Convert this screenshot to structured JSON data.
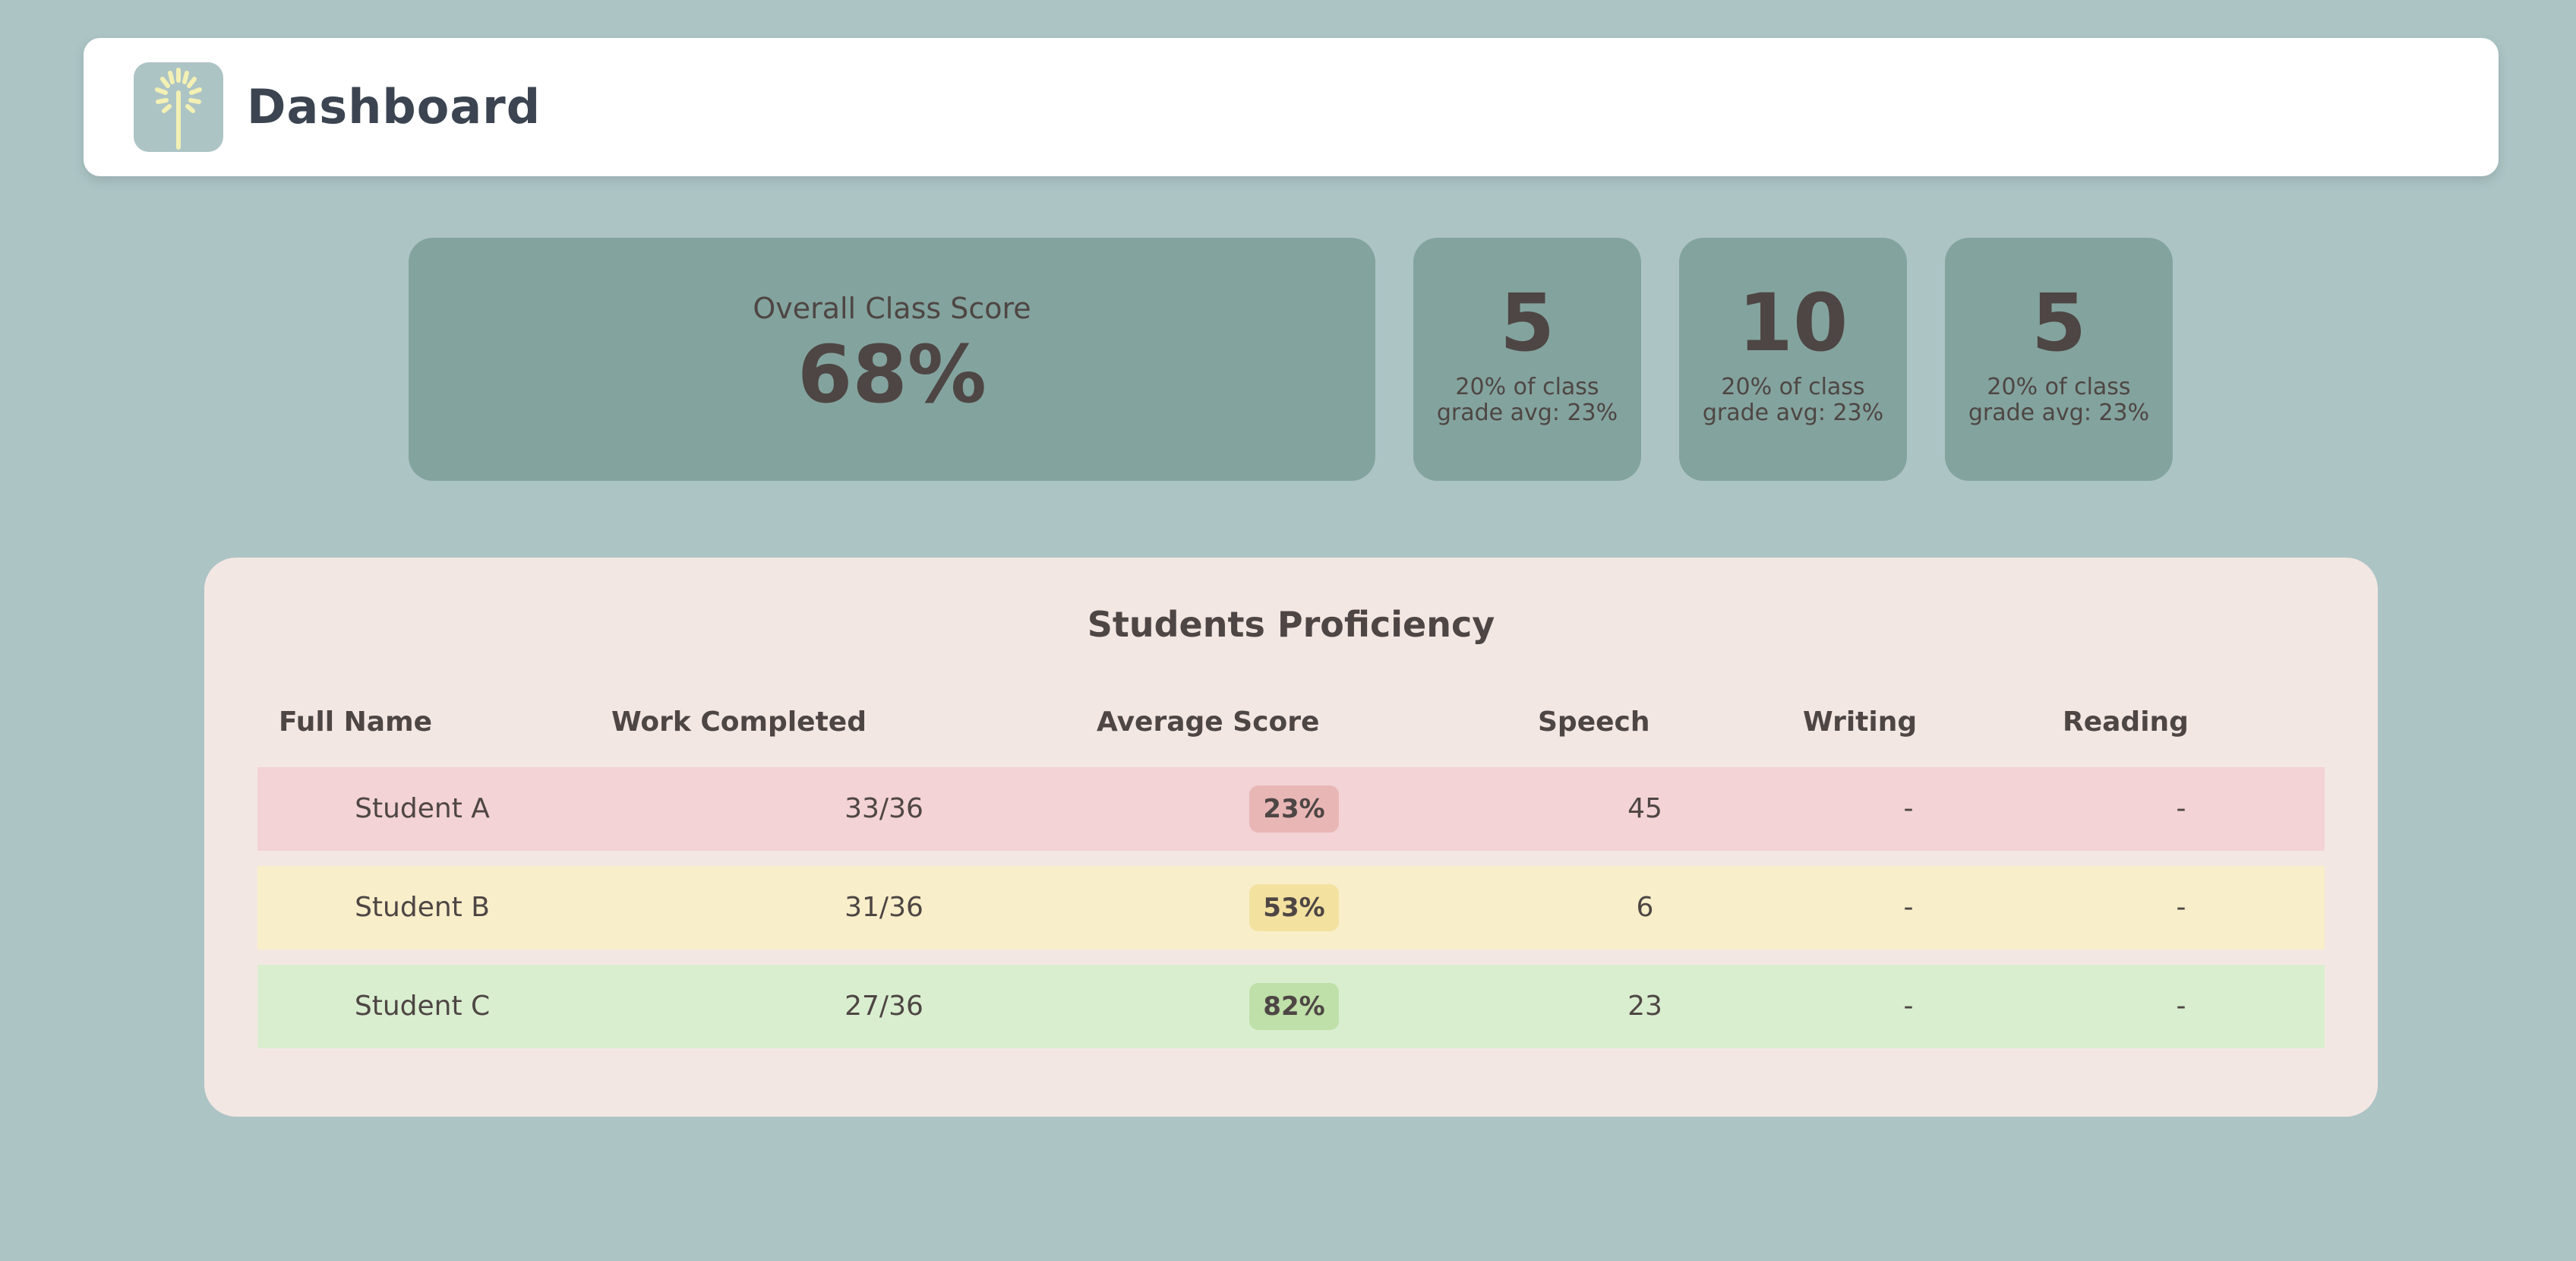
{
  "header": {
    "title": "Dashboard",
    "logo_icon": "tree-icon"
  },
  "overview": {
    "label": "Overall Class Score",
    "value": "68%"
  },
  "stat_cards": [
    {
      "value": "5",
      "caption_line1": "20% of class",
      "caption_line2": "grade avg: 23%"
    },
    {
      "value": "10",
      "caption_line1": "20% of class",
      "caption_line2": "grade avg: 23%"
    },
    {
      "value": "5",
      "caption_line1": "20% of class",
      "caption_line2": "grade avg: 23%"
    }
  ],
  "proficiency": {
    "title": "Students Proficiency",
    "columns": [
      "Full Name",
      "Work Completed",
      "Average Score",
      "Speech",
      "Writing",
      "Reading"
    ],
    "rows": [
      {
        "name": "Student A",
        "work": "33/36",
        "score": "23%",
        "speech": "45",
        "writing": "-",
        "reading": "-",
        "row_color": "#f3d3d5",
        "pill_color": "#e9b6b6"
      },
      {
        "name": "Student B",
        "work": "31/36",
        "score": "53%",
        "speech": "6",
        "writing": "-",
        "reading": "-",
        "row_color": "#f8eec9",
        "pill_color": "#f3e1a0"
      },
      {
        "name": "Student C",
        "work": "27/36",
        "score": "82%",
        "speech": "23",
        "writing": "-",
        "reading": "-",
        "row_color": "#d9eecf",
        "pill_color": "#bfe0a9"
      }
    ]
  },
  "colors": {
    "background": "#adc4c5",
    "card": "#83a39e",
    "panel": "#f3e7e3",
    "text": "#4e4644"
  }
}
